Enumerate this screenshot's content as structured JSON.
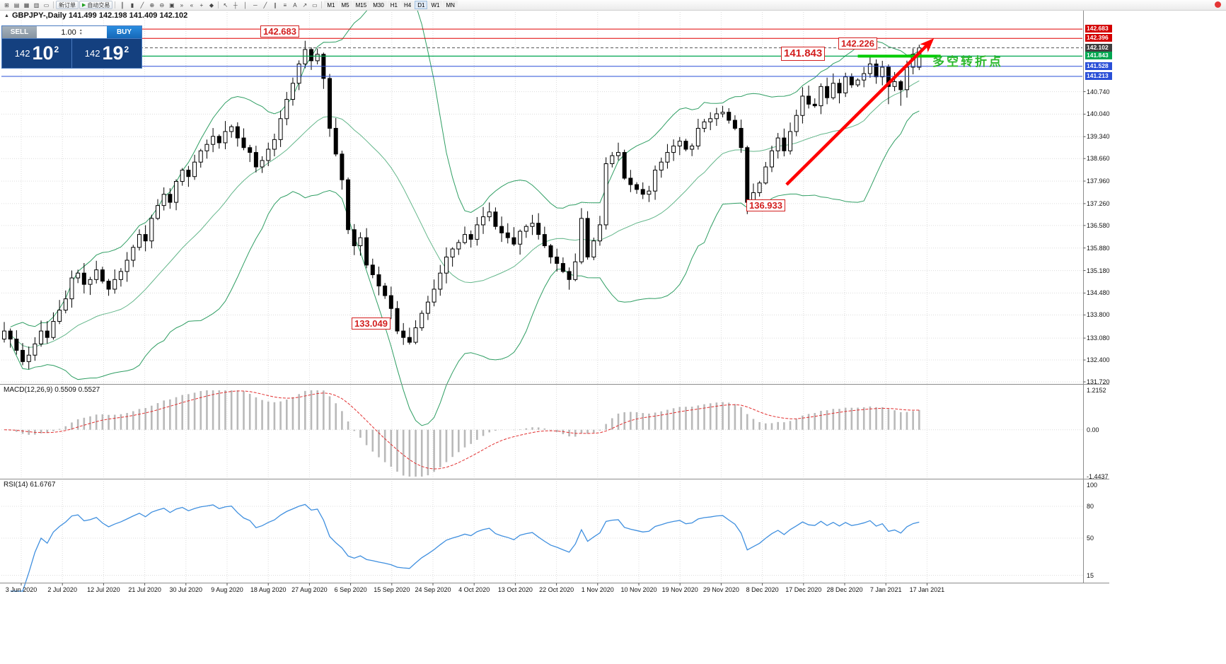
{
  "toolbar": {
    "left_icons": [
      {
        "name": "new-chart-icon",
        "glyph": "⊞"
      },
      {
        "name": "profiles-icon",
        "glyph": "▤"
      },
      {
        "name": "market-watch-icon",
        "glyph": "▦"
      },
      {
        "name": "data-window-icon",
        "glyph": "▥"
      },
      {
        "name": "terminal-icon",
        "glyph": "▭"
      }
    ],
    "new_order_label": "新订单",
    "autotrade_label": "自动交易",
    "mid_icons": [
      {
        "name": "bar-chart-icon",
        "glyph": "║"
      },
      {
        "name": "candlestick-icon",
        "glyph": "▮"
      },
      {
        "name": "line-chart-icon",
        "glyph": "╱"
      },
      {
        "name": "zoom-in-icon",
        "glyph": "⊕"
      },
      {
        "name": "zoom-out-icon",
        "glyph": "⊖"
      },
      {
        "name": "tile-windows-icon",
        "glyph": "▣"
      },
      {
        "name": "auto-scroll-icon",
        "glyph": "»"
      },
      {
        "name": "chart-shift-icon",
        "glyph": "«"
      },
      {
        "name": "indicators-icon",
        "glyph": "+"
      },
      {
        "name": "objects-icon",
        "glyph": "◆"
      }
    ],
    "draw_icons": [
      {
        "name": "cursor-icon",
        "glyph": "↖"
      },
      {
        "name": "crosshair-icon",
        "glyph": "┼"
      },
      {
        "name": "vertical-line-icon",
        "glyph": "│"
      },
      {
        "name": "horizontal-line-icon",
        "glyph": "─"
      },
      {
        "name": "trendline-icon",
        "glyph": "╱"
      },
      {
        "name": "channel-icon",
        "glyph": "∥"
      },
      {
        "name": "fibonacci-icon",
        "glyph": "≡"
      },
      {
        "name": "text-icon",
        "glyph": "A"
      },
      {
        "name": "arrow-icon",
        "glyph": "↗"
      },
      {
        "name": "shapes-icon",
        "glyph": "▭"
      }
    ],
    "timeframes": [
      "M1",
      "M5",
      "M15",
      "M30",
      "H1",
      "H4",
      "D1",
      "W1",
      "MN"
    ],
    "active_timeframe": "D1"
  },
  "chart": {
    "symbol_title": "GBPJPY-,Daily 141.499 142.198 141.409 142.102",
    "macd_title": "MACD(12,26,9) 0.5509 0.5527",
    "rsi_title": "RSI(14) 61.6767"
  },
  "trade_panel": {
    "sell_label": "SELL",
    "buy_label": "BUY",
    "volume": "1.00",
    "sell_price_main": "142",
    "sell_price_pips": "10",
    "sell_price_frac": "2",
    "buy_price_main": "142",
    "buy_price_pips": "19",
    "buy_price_frac": "2"
  },
  "price_axis": {
    "ticks": [
      "140.740",
      "140.040",
      "139.340",
      "138.660",
      "137.960",
      "137.260",
      "136.580",
      "135.880",
      "135.180",
      "134.480",
      "133.800",
      "133.080",
      "132.400",
      "131.720"
    ],
    "badges": [
      {
        "value": "142.683",
        "color": "#d40000"
      },
      {
        "value": "142.396",
        "color": "#d40000"
      },
      {
        "value": "142.102",
        "color": "#3f3f3f"
      },
      {
        "value": "141.843",
        "color": "#00a651"
      },
      {
        "value": "141.528",
        "color": "#2a4fd7"
      },
      {
        "value": "141.213",
        "color": "#2a4fd7"
      }
    ]
  },
  "x_axis": {
    "dates": [
      "3 Jun 2020",
      "2 Jul 2020",
      "12 Jul 2020",
      "21 Jul 2020",
      "30 Jul 2020",
      "9 Aug 2020",
      "18 Aug 2020",
      "27 Aug 2020",
      "6 Sep 2020",
      "15 Sep 2020",
      "24 Sep 2020",
      "4 Oct 2020",
      "13 Oct 2020",
      "22 Oct 2020",
      "1 Nov 2020",
      "10 Nov 2020",
      "19 Nov 2020",
      "29 Nov 2020",
      "8 Dec 2020",
      "17 Dec 2020",
      "28 Dec 2020",
      "7 Jan 2021",
      "17 Jan 2021"
    ]
  },
  "indicators": {
    "macd_axis": [
      "1.2152",
      "0.00",
      "-1.4437"
    ],
    "rsi_axis": [
      "100",
      "80",
      "50",
      "15"
    ]
  },
  "chart_data": {
    "type": "candlestick+indicators",
    "symbol": "GBPJPY-",
    "timeframe": "Daily",
    "ohlc_current": {
      "open": 141.499,
      "high": 142.198,
      "low": 141.409,
      "close": 142.102
    },
    "price_min": 131.72,
    "price_max": 143.28,
    "closes": [
      133.3,
      133.05,
      132.7,
      132.35,
      132.55,
      132.9,
      133.3,
      133.1,
      133.6,
      133.95,
      134.3,
      134.95,
      135.1,
      134.75,
      134.9,
      135.2,
      134.85,
      134.6,
      134.9,
      135.15,
      135.5,
      135.9,
      136.3,
      136.1,
      136.8,
      137.2,
      137.55,
      137.3,
      137.95,
      138.3,
      138.1,
      138.55,
      138.9,
      139.1,
      139.35,
      139.15,
      139.5,
      139.65,
      139.3,
      139.0,
      138.85,
      138.4,
      138.6,
      138.95,
      139.25,
      139.9,
      140.5,
      141.0,
      141.6,
      142.05,
      141.7,
      141.9,
      141.15,
      139.6,
      138.8,
      138.0,
      136.45,
      135.95,
      136.2,
      135.35,
      135.05,
      134.7,
      134.4,
      134.0,
      133.3,
      133.1,
      132.95,
      133.4,
      133.85,
      134.2,
      134.6,
      135.1,
      135.6,
      135.85,
      136.05,
      136.3,
      136.15,
      136.6,
      136.85,
      137.0,
      136.55,
      136.35,
      136.2,
      136.0,
      136.4,
      136.55,
      136.65,
      136.3,
      135.95,
      135.6,
      135.4,
      135.15,
      134.9,
      135.45,
      136.8,
      135.6,
      136.1,
      136.6,
      138.5,
      138.75,
      138.85,
      138.05,
      137.85,
      137.7,
      137.55,
      137.65,
      138.3,
      138.55,
      138.85,
      139.05,
      139.2,
      138.95,
      139.05,
      139.6,
      139.8,
      139.9,
      140.05,
      140.1,
      139.85,
      139.6,
      139.0,
      137.3,
      137.6,
      137.9,
      138.4,
      138.9,
      139.3,
      138.9,
      139.5,
      140.0,
      140.6,
      140.35,
      140.3,
      140.9,
      140.55,
      141.0,
      140.7,
      141.2,
      140.95,
      141.1,
      141.3,
      141.6,
      141.2,
      141.5,
      140.9,
      141.05,
      140.8,
      141.5,
      141.9,
      142.102
    ],
    "overrides": [
      {
        "i": 49,
        "high": 142.32
      },
      {
        "i": 121,
        "low": 136.933
      },
      {
        "i": 144,
        "low": 140.35
      },
      {
        "i": 146,
        "low": 140.3
      },
      {
        "i": 149,
        "open": 141.499,
        "high": 142.198,
        "low": 141.409,
        "close": 142.102
      }
    ],
    "bollinger": {
      "period": 20,
      "deviation": 2,
      "color": "#2f9e63"
    },
    "hlines": [
      {
        "price": 142.683,
        "color": "#e00000",
        "width": 1
      },
      {
        "price": 142.396,
        "color": "#e00000",
        "width": 1
      },
      {
        "price": 142.102,
        "color": "#555555",
        "width": 1,
        "dash": "4 3"
      },
      {
        "price": 141.843,
        "color": "#00a651",
        "width": 1.2
      },
      {
        "price": 141.528,
        "color": "#2a4fd7",
        "width": 1
      },
      {
        "price": 141.213,
        "color": "#2a4fd7",
        "width": 1
      }
    ],
    "green_segment": {
      "price": 141.843,
      "from_index": 139,
      "to_index": 152.5,
      "color": "#00cc00"
    },
    "trend_arrow": {
      "from_index": 127.4,
      "from_price": 137.85,
      "to_index": 151,
      "to_price": 142.32,
      "color": "#ff0000"
    },
    "macd": {
      "fast": 12,
      "slow": 26,
      "signal": 9,
      "current": "0.5509 0.5527",
      "scale_max": 1.2152,
      "scale_min": -1.4437
    },
    "rsi": {
      "period": 14,
      "current": 61.6767,
      "levels": [
        80,
        50,
        15
      ]
    },
    "annotations": [
      {
        "text": "142.683",
        "price": 142.683
      },
      {
        "text": "142.226",
        "price": 142.226
      },
      {
        "text": "141.843",
        "price": 141.843
      },
      {
        "text": "136.933",
        "price": 136.933
      },
      {
        "text": "133.049",
        "price": 133.049
      },
      {
        "text": "多空转折点",
        "type": "note"
      }
    ]
  }
}
